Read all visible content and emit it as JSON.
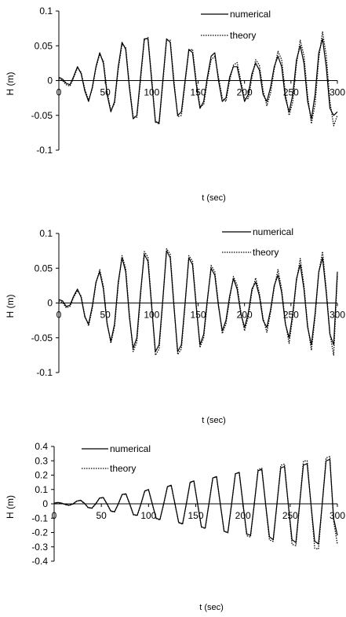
{
  "chart_data": [
    {
      "type": "line",
      "title": "",
      "xlabel": "t (sec)",
      "ylabel": "H (m)",
      "xlim": [
        0,
        300
      ],
      "ylim": [
        -0.1,
        0.1
      ],
      "xticks": [
        "0",
        "50",
        "100",
        "150",
        "200",
        "250",
        "300"
      ],
      "yticks": [
        "0.1",
        "0.05",
        "0",
        "-0.05",
        "-0.1"
      ],
      "grid": false,
      "legend_position": "top-right",
      "series": [
        {
          "name": "numerical",
          "style": "solid",
          "color": "#000000",
          "x": [
            0,
            4,
            8,
            12,
            16,
            20,
            24,
            28,
            32,
            36,
            40,
            44,
            48,
            52,
            56,
            60,
            64,
            68,
            72,
            76,
            80,
            84,
            88,
            92,
            96,
            100,
            104,
            108,
            112,
            116,
            120,
            124,
            128,
            132,
            136,
            140,
            144,
            148,
            152,
            156,
            160,
            164,
            168,
            172,
            176,
            180,
            184,
            188,
            192,
            196,
            200,
            204,
            208,
            212,
            216,
            220,
            224,
            228,
            232,
            236,
            240,
            244,
            248,
            252,
            256,
            260,
            264,
            268,
            272,
            276,
            280,
            284,
            288,
            292,
            296,
            300
          ],
          "y": [
            0.005,
            0.002,
            -0.004,
            -0.006,
            0.006,
            0.02,
            0.01,
            -0.015,
            -0.03,
            -0.01,
            0.02,
            0.04,
            0.025,
            -0.02,
            -0.045,
            -0.03,
            0.02,
            0.055,
            0.045,
            -0.01,
            -0.055,
            -0.05,
            0.005,
            0.06,
            0.06,
            0.0,
            -0.06,
            -0.06,
            0.0,
            0.06,
            0.055,
            -0.005,
            -0.05,
            -0.045,
            0.0,
            0.045,
            0.04,
            -0.005,
            -0.04,
            -0.03,
            0.005,
            0.035,
            0.04,
            0.0,
            -0.03,
            -0.025,
            0.005,
            0.02,
            0.02,
            -0.005,
            -0.03,
            -0.02,
            0.01,
            0.025,
            0.015,
            -0.02,
            -0.03,
            -0.01,
            0.02,
            0.035,
            0.02,
            -0.025,
            -0.045,
            -0.02,
            0.03,
            0.05,
            0.025,
            -0.03,
            -0.055,
            -0.02,
            0.04,
            0.06,
            0.02,
            -0.04,
            -0.05,
            -0.045
          ]
        },
        {
          "name": "theory",
          "style": "dotted",
          "color": "#000000",
          "x": [
            0,
            4,
            8,
            12,
            16,
            20,
            24,
            28,
            32,
            36,
            40,
            44,
            48,
            52,
            56,
            60,
            64,
            68,
            72,
            76,
            80,
            84,
            88,
            92,
            96,
            100,
            104,
            108,
            112,
            116,
            120,
            124,
            128,
            132,
            136,
            140,
            144,
            148,
            152,
            156,
            160,
            164,
            168,
            172,
            176,
            180,
            184,
            188,
            192,
            196,
            200,
            204,
            208,
            212,
            216,
            220,
            224,
            228,
            232,
            236,
            240,
            244,
            248,
            252,
            256,
            260,
            264,
            268,
            272,
            276,
            280,
            284,
            288,
            292,
            296,
            300
          ],
          "y": [
            0.003,
            0.0,
            -0.006,
            -0.008,
            0.004,
            0.018,
            0.012,
            -0.012,
            -0.028,
            -0.012,
            0.018,
            0.038,
            0.028,
            -0.016,
            -0.043,
            -0.033,
            0.016,
            0.052,
            0.048,
            -0.006,
            -0.052,
            -0.053,
            0.0,
            0.058,
            0.062,
            0.004,
            -0.058,
            -0.063,
            -0.004,
            0.058,
            0.058,
            0.0,
            -0.052,
            -0.05,
            -0.004,
            0.043,
            0.045,
            0.0,
            -0.037,
            -0.035,
            0.0,
            0.03,
            0.035,
            0.005,
            -0.025,
            -0.03,
            0.0,
            0.022,
            0.026,
            0.0,
            -0.026,
            -0.026,
            0.004,
            0.03,
            0.022,
            -0.014,
            -0.036,
            -0.018,
            0.016,
            0.042,
            0.03,
            -0.018,
            -0.05,
            -0.03,
            0.024,
            0.058,
            0.036,
            -0.022,
            -0.062,
            -0.034,
            0.032,
            0.07,
            0.036,
            -0.03,
            -0.065,
            -0.05
          ]
        }
      ]
    },
    {
      "type": "line",
      "title": "",
      "xlabel": "t (sec)",
      "ylabel": "H (m)",
      "xlim": [
        0,
        300
      ],
      "ylim": [
        -0.1,
        0.1
      ],
      "xticks": [
        "0",
        "50",
        "100",
        "150",
        "200",
        "250",
        "300"
      ],
      "yticks": [
        "0.1",
        "0.05",
        "0",
        "-0.05",
        "-0.1"
      ],
      "grid": false,
      "legend_position": "top-right",
      "series": [
        {
          "name": "numerical",
          "style": "solid",
          "color": "#000000",
          "x": [
            0,
            4,
            8,
            12,
            16,
            20,
            24,
            28,
            32,
            36,
            40,
            44,
            48,
            52,
            56,
            60,
            64,
            68,
            72,
            76,
            80,
            84,
            88,
            92,
            96,
            100,
            104,
            108,
            112,
            116,
            120,
            124,
            128,
            132,
            136,
            140,
            144,
            148,
            152,
            156,
            160,
            164,
            168,
            172,
            176,
            180,
            184,
            188,
            192,
            196,
            200,
            204,
            208,
            212,
            216,
            220,
            224,
            228,
            232,
            236,
            240,
            244,
            248,
            252,
            256,
            260,
            264,
            268,
            272,
            276,
            280,
            284,
            288,
            292,
            296,
            300
          ],
          "y": [
            0.005,
            0.003,
            -0.005,
            -0.003,
            0.01,
            0.02,
            0.008,
            -0.02,
            -0.03,
            -0.005,
            0.03,
            0.045,
            0.02,
            -0.03,
            -0.055,
            -0.03,
            0.03,
            0.065,
            0.045,
            -0.02,
            -0.065,
            -0.05,
            0.015,
            0.07,
            0.06,
            -0.005,
            -0.07,
            -0.06,
            0.005,
            0.075,
            0.065,
            -0.005,
            -0.07,
            -0.06,
            0.0,
            0.065,
            0.055,
            -0.005,
            -0.06,
            -0.045,
            0.005,
            0.05,
            0.04,
            -0.005,
            -0.04,
            -0.025,
            0.01,
            0.035,
            0.02,
            -0.015,
            -0.035,
            -0.015,
            0.02,
            0.03,
            0.01,
            -0.025,
            -0.035,
            -0.01,
            0.025,
            0.04,
            0.015,
            -0.03,
            -0.05,
            -0.015,
            0.035,
            0.055,
            0.02,
            -0.035,
            -0.06,
            -0.015,
            0.045,
            0.065,
            0.015,
            -0.045,
            -0.06,
            0.045
          ]
        },
        {
          "name": "theory",
          "style": "dotted",
          "color": "#000000",
          "x": [
            0,
            4,
            8,
            12,
            16,
            20,
            24,
            28,
            32,
            36,
            40,
            44,
            48,
            52,
            56,
            60,
            64,
            68,
            72,
            76,
            80,
            84,
            88,
            92,
            96,
            100,
            104,
            108,
            112,
            116,
            120,
            124,
            128,
            132,
            136,
            140,
            144,
            148,
            152,
            156,
            160,
            164,
            168,
            172,
            176,
            180,
            184,
            188,
            192,
            196,
            200,
            204,
            208,
            212,
            216,
            220,
            224,
            228,
            232,
            236,
            240,
            244,
            248,
            252,
            256,
            260,
            264,
            268,
            272,
            276,
            280,
            284,
            288,
            292,
            296,
            300
          ],
          "y": [
            0.003,
            0.001,
            -0.007,
            -0.005,
            0.008,
            0.018,
            0.01,
            -0.018,
            -0.033,
            -0.008,
            0.028,
            0.048,
            0.024,
            -0.028,
            -0.058,
            -0.034,
            0.026,
            0.068,
            0.05,
            -0.016,
            -0.07,
            -0.056,
            0.01,
            0.074,
            0.066,
            -0.002,
            -0.075,
            -0.066,
            0.002,
            0.078,
            0.07,
            -0.002,
            -0.074,
            -0.066,
            -0.003,
            0.068,
            0.06,
            -0.002,
            -0.064,
            -0.05,
            0.002,
            0.054,
            0.045,
            -0.002,
            -0.044,
            -0.03,
            0.006,
            0.038,
            0.026,
            -0.012,
            -0.04,
            -0.02,
            0.016,
            0.036,
            0.014,
            -0.022,
            -0.042,
            -0.014,
            0.022,
            0.048,
            0.02,
            -0.028,
            -0.058,
            -0.02,
            0.032,
            0.064,
            0.026,
            -0.032,
            -0.068,
            -0.02,
            0.044,
            0.074,
            0.02,
            -0.044,
            -0.075,
            0.04
          ]
        }
      ]
    },
    {
      "type": "line",
      "title": "",
      "xlabel": "t (sec)",
      "ylabel": "H (m)",
      "xlim": [
        0,
        300
      ],
      "ylim": [
        -0.4,
        0.4
      ],
      "xticks": [
        "0",
        "50",
        "100",
        "150",
        "200",
        "250",
        "300"
      ],
      "yticks": [
        "0.4",
        "0.3",
        "0.2",
        "0.1",
        "0",
        "-0.1",
        "-0.2",
        "-0.3",
        "-0.4"
      ],
      "grid": false,
      "legend_position": "top-left",
      "series": [
        {
          "name": "numerical",
          "style": "solid",
          "color": "#000000",
          "x": [
            0,
            4,
            8,
            12,
            16,
            20,
            24,
            28,
            32,
            36,
            40,
            44,
            48,
            52,
            56,
            60,
            64,
            68,
            72,
            76,
            80,
            84,
            88,
            92,
            96,
            100,
            104,
            108,
            112,
            116,
            120,
            124,
            128,
            132,
            136,
            140,
            144,
            148,
            152,
            156,
            160,
            164,
            168,
            172,
            176,
            180,
            184,
            188,
            192,
            196,
            200,
            204,
            208,
            212,
            216,
            220,
            224,
            228,
            232,
            236,
            240,
            244,
            248,
            252,
            256,
            260,
            264,
            268,
            272,
            276,
            280,
            284,
            288,
            292,
            296,
            300
          ],
          "y": [
            0.005,
            0.01,
            0.005,
            -0.005,
            -0.01,
            0.0,
            0.02,
            0.025,
            0.005,
            -0.025,
            -0.03,
            0.0,
            0.04,
            0.045,
            0.0,
            -0.05,
            -0.055,
            0.0,
            0.065,
            0.07,
            0.0,
            -0.075,
            -0.08,
            0.0,
            0.09,
            0.1,
            0.0,
            -0.1,
            -0.11,
            0.0,
            0.12,
            0.13,
            0.0,
            -0.13,
            -0.14,
            0.0,
            0.15,
            0.16,
            0.0,
            -0.16,
            -0.17,
            0.0,
            0.18,
            0.19,
            0.0,
            -0.19,
            -0.2,
            0.0,
            0.21,
            0.22,
            0.0,
            -0.21,
            -0.22,
            0.0,
            0.23,
            0.24,
            0.0,
            -0.23,
            -0.25,
            0.0,
            0.25,
            0.26,
            0.0,
            -0.25,
            -0.27,
            0.0,
            0.27,
            0.28,
            0.0,
            -0.26,
            -0.28,
            0.0,
            0.3,
            0.31,
            -0.1,
            -0.22
          ]
        },
        {
          "name": "theory",
          "style": "dotted",
          "color": "#000000",
          "x": [
            0,
            4,
            8,
            12,
            16,
            20,
            24,
            28,
            32,
            36,
            40,
            44,
            48,
            52,
            56,
            60,
            64,
            68,
            72,
            76,
            80,
            84,
            88,
            92,
            96,
            100,
            104,
            108,
            112,
            116,
            120,
            124,
            128,
            132,
            136,
            140,
            144,
            148,
            152,
            156,
            160,
            164,
            168,
            172,
            176,
            180,
            184,
            188,
            192,
            196,
            200,
            204,
            208,
            212,
            216,
            220,
            224,
            228,
            232,
            236,
            240,
            244,
            248,
            252,
            256,
            260,
            264,
            268,
            272,
            276,
            280,
            284,
            288,
            292,
            296,
            300
          ],
          "y": [
            0.003,
            0.008,
            0.004,
            -0.006,
            -0.012,
            -0.002,
            0.018,
            0.023,
            0.003,
            -0.027,
            -0.032,
            -0.002,
            0.038,
            0.043,
            -0.002,
            -0.052,
            -0.057,
            -0.002,
            0.063,
            0.068,
            -0.002,
            -0.077,
            -0.082,
            -0.002,
            0.088,
            0.098,
            -0.002,
            -0.102,
            -0.112,
            -0.002,
            0.118,
            0.128,
            -0.002,
            -0.132,
            -0.142,
            -0.002,
            0.148,
            0.158,
            -0.002,
            -0.162,
            -0.172,
            -0.002,
            0.178,
            0.188,
            -0.002,
            -0.192,
            -0.202,
            -0.002,
            0.208,
            0.218,
            -0.002,
            -0.222,
            -0.232,
            -0.002,
            0.238,
            0.248,
            -0.002,
            -0.252,
            -0.262,
            -0.002,
            0.268,
            0.278,
            -0.002,
            -0.282,
            -0.292,
            -0.002,
            0.298,
            0.3,
            -0.002,
            -0.31,
            -0.315,
            -0.002,
            0.32,
            0.33,
            -0.12,
            -0.28
          ]
        }
      ]
    }
  ]
}
